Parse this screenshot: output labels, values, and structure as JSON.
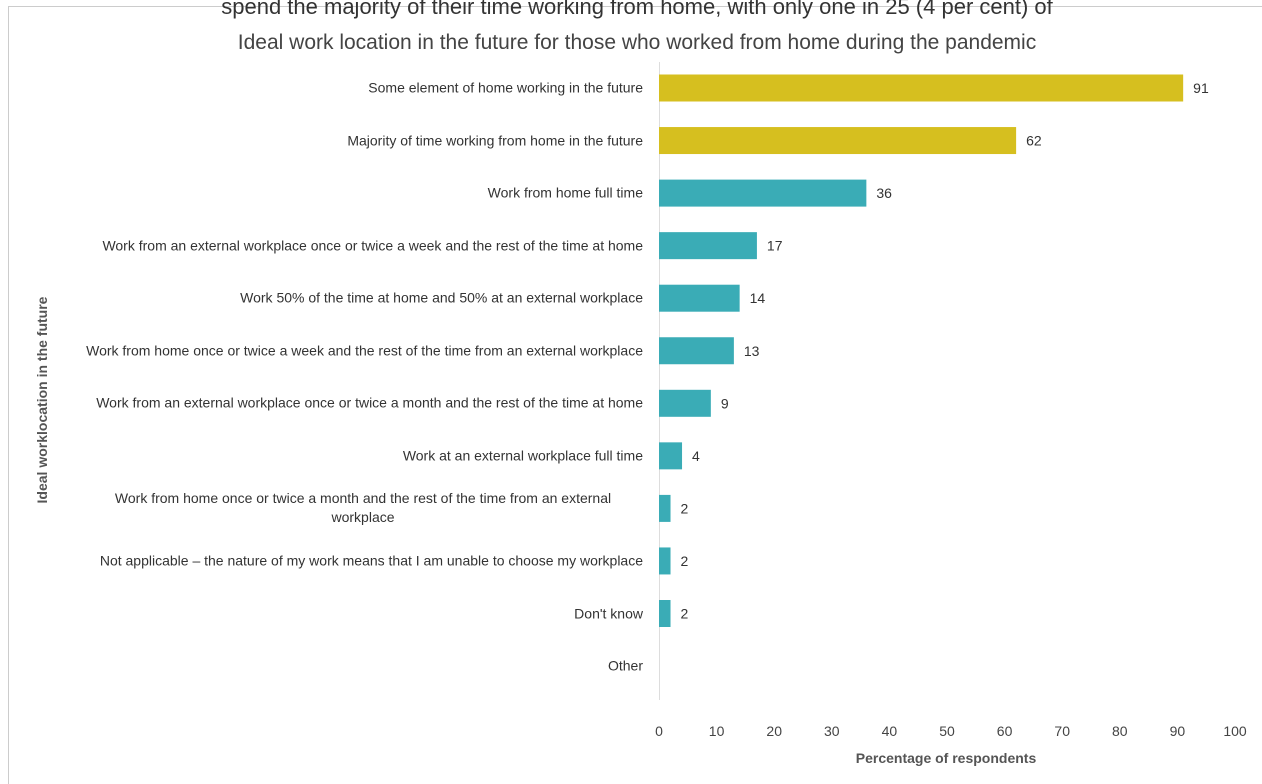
{
  "cropped_text": "spend the majority of their time working from home, with only one in 25 (4 per cent) of",
  "chart_data": {
    "type": "bar",
    "orientation": "horizontal",
    "title": "Ideal work location in the future for those who worked from home during the pandemic",
    "x_label": "Percentage of respondents",
    "y_label": "Ideal worklocation in the future",
    "categories": [
      "Some element of home working in the future",
      "Majority of time working from home in the future",
      "Work from home full time",
      "Work from an external workplace once or twice a week and the rest of the time at home",
      "Work 50% of the time at home and 50% at an external workplace",
      "Work from home once or twice a week and the rest of the time from an external workplace",
      "Work from an external workplace once or twice a month and the rest of the time at home",
      "Work at an external workplace full time",
      "Work from home once or twice a month and the rest of the time from an external workplace",
      "Not applicable – the nature of my work means that I am unable to choose my workplace",
      "Don't know",
      "Other"
    ],
    "values": [
      91,
      62,
      36,
      17,
      14,
      13,
      9,
      4,
      2,
      2,
      2,
      null
    ],
    "colors": [
      "#d6bf1f",
      "#d6bf1f",
      "#3aacb6",
      "#3aacb6",
      "#3aacb6",
      "#3aacb6",
      "#3aacb6",
      "#3aacb6",
      "#3aacb6",
      "#3aacb6",
      "#3aacb6",
      "#3aacb6"
    ],
    "xlim": [
      0,
      100
    ],
    "xticks": [
      0,
      10,
      20,
      30,
      40,
      50,
      60,
      70,
      80,
      90,
      100
    ],
    "grid": false
  }
}
